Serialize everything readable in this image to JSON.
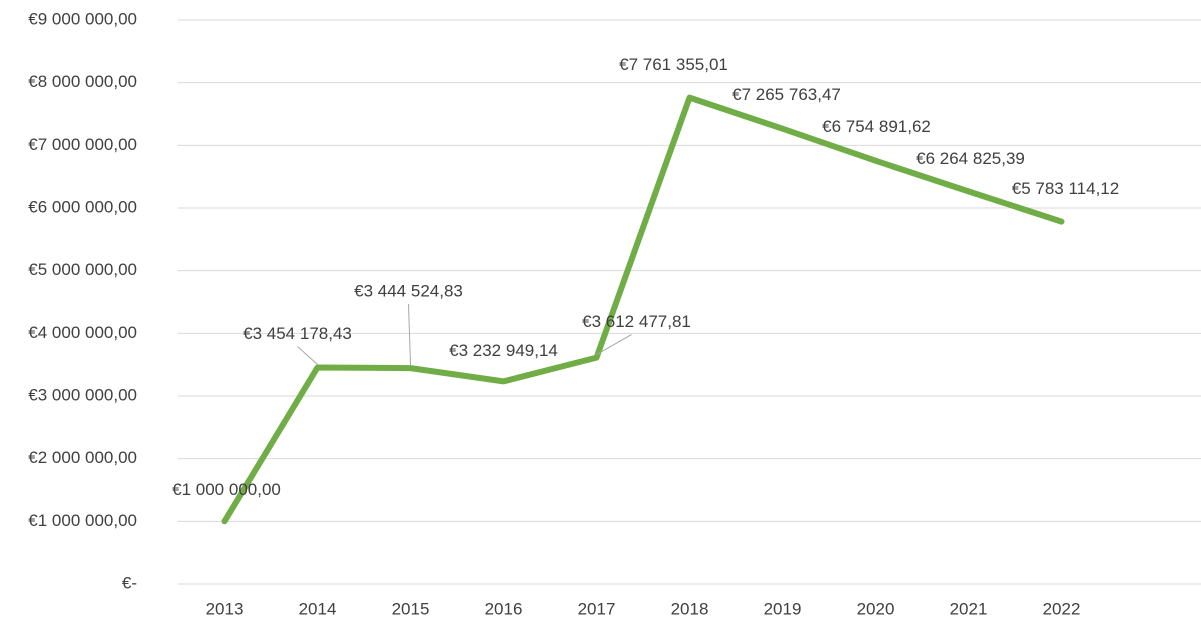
{
  "chart_data": {
    "type": "line",
    "categories": [
      "2013",
      "2014",
      "2015",
      "2016",
      "2017",
      "2018",
      "2019",
      "2020",
      "2021",
      "2022"
    ],
    "series": [
      {
        "color": "#70ad47",
        "values": [
          1000000,
          3454178.43,
          3444524.83,
          3232949.14,
          3612477.81,
          7761355.01,
          7265763.47,
          6754891.62,
          6264825.39,
          5783114.12
        ],
        "value_labels": [
          "€1 000 000,00",
          "€3 454 178,43",
          "€3 444 524,83",
          "€3 232 949,14",
          "€3 612 477,81",
          "€7 761 355,01",
          "€7 265 763,47",
          "€6 754 891,62",
          "€6 264 825,39",
          "€5 783 114,12"
        ]
      }
    ],
    "ylim": [
      0,
      9000000
    ],
    "yticks": [
      {
        "value": 0,
        "label": "€-"
      },
      {
        "value": 1000000,
        "label": "€1 000 000,00"
      },
      {
        "value": 2000000,
        "label": "€2 000 000,00"
      },
      {
        "value": 3000000,
        "label": "€3 000 000,00"
      },
      {
        "value": 4000000,
        "label": "€4 000 000,00"
      },
      {
        "value": 5000000,
        "label": "€5 000 000,00"
      },
      {
        "value": 6000000,
        "label": "€6 000 000,00"
      },
      {
        "value": 7000000,
        "label": "€7 000 000,00"
      },
      {
        "value": 8000000,
        "label": "€8 000 000,00"
      },
      {
        "value": 9000000,
        "label": "€9 000 000,00"
      }
    ],
    "grid": true
  }
}
